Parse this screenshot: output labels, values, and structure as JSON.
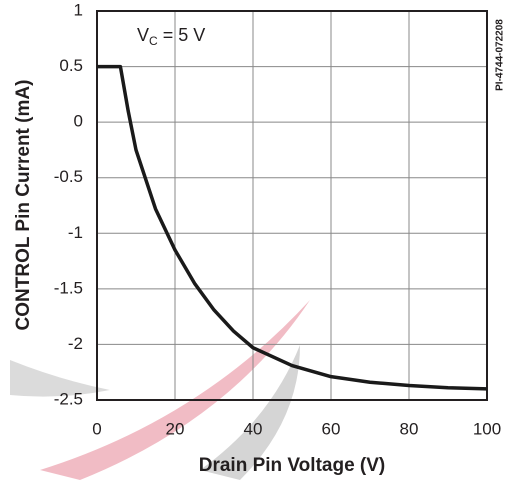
{
  "chart_data": {
    "type": "line",
    "x_label": "Drain Pin Voltage (V)",
    "y_label": "CONTROL Pin Current (mA)",
    "annotation": {
      "main": "V",
      "sub": "C",
      "rest": "= 5 V"
    },
    "figure_id": "PI-4744-072208",
    "x": [
      0,
      6,
      8,
      10,
      15,
      20,
      25,
      30,
      35,
      40,
      50,
      60,
      70,
      80,
      90,
      100
    ],
    "series": [
      {
        "color": "#1a1a1a",
        "values": [
          0.5,
          0.5,
          0.1,
          -0.25,
          -0.78,
          -1.15,
          -1.45,
          -1.69,
          -1.88,
          -2.03,
          -2.19,
          -2.29,
          -2.34,
          -2.37,
          -2.39,
          -2.4
        ]
      }
    ],
    "xlim": [
      0,
      100
    ],
    "xticks": [
      0,
      20,
      40,
      60,
      80,
      100
    ],
    "ylim": [
      -2.5,
      1
    ],
    "yticks": [
      1,
      0.5,
      0,
      -0.5,
      -1,
      -1.5,
      -2,
      -2.5
    ],
    "grid": true
  }
}
